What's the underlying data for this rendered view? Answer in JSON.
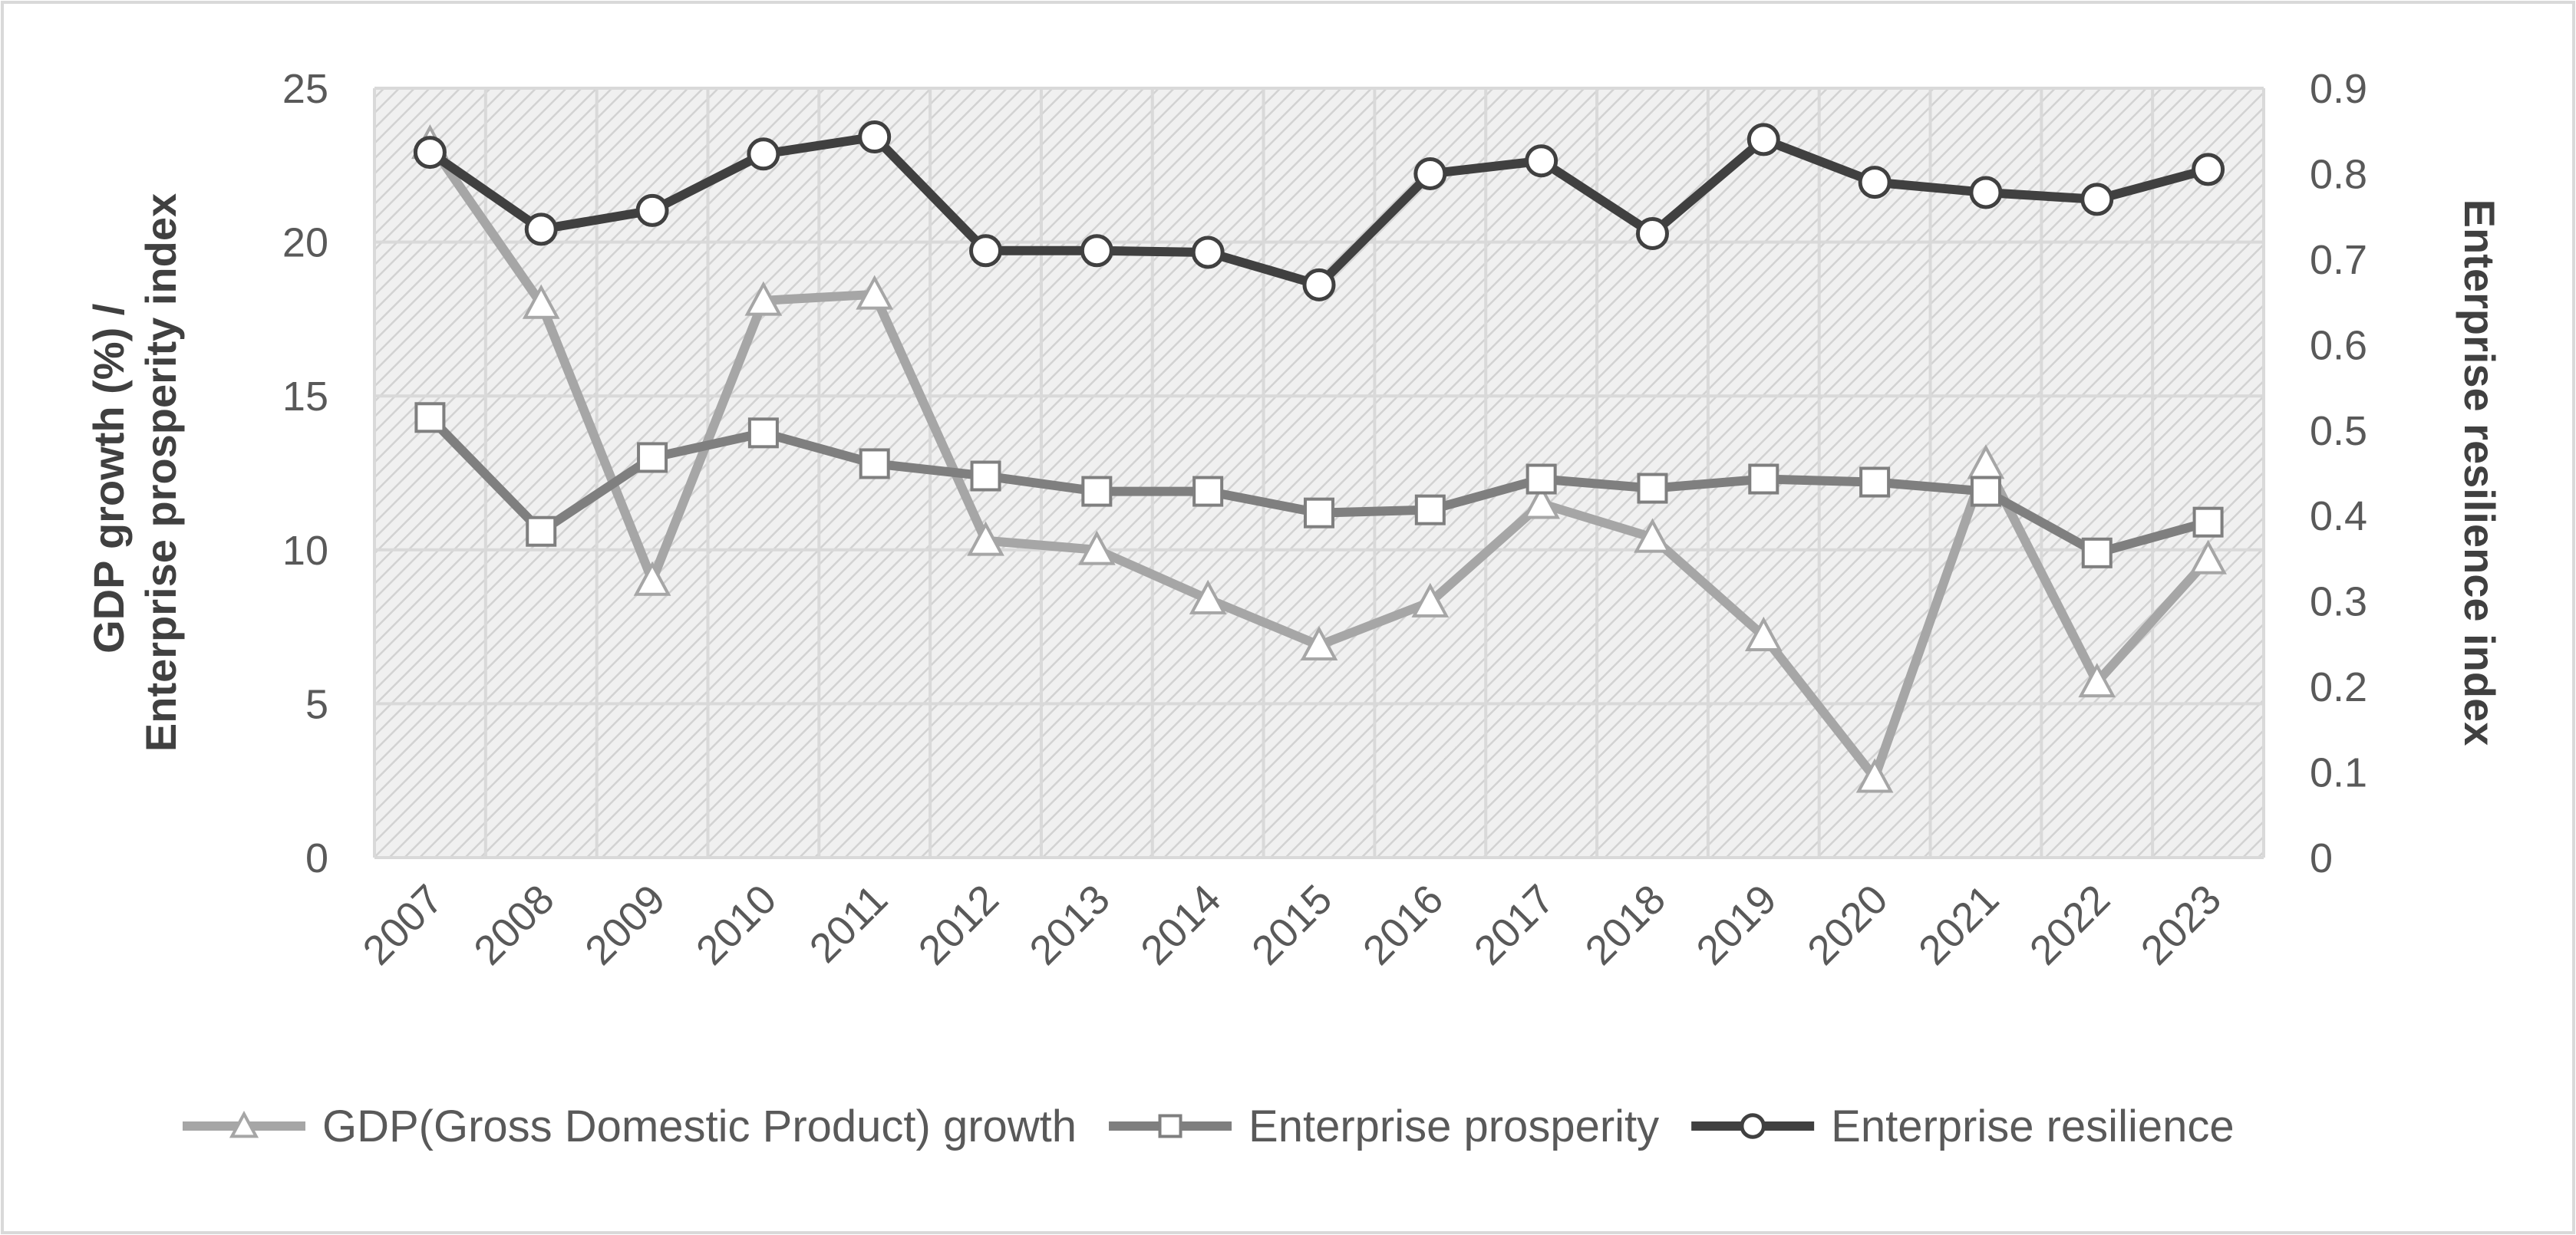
{
  "chart_data": {
    "type": "line",
    "title": "",
    "xlabel": "",
    "ylabel": "GDP growth (%) / Enterprise prosperity index",
    "ylabel_lines": [
      "GDP growth (%) /",
      "Enterprise prosperity index"
    ],
    "y2label": "Enterprise resilience index",
    "categories": [
      "2007",
      "2008",
      "2009",
      "2010",
      "2011",
      "2012",
      "2013",
      "2014",
      "2015",
      "2016",
      "2017",
      "2018",
      "2019",
      "2020",
      "2021",
      "2022",
      "2023"
    ],
    "ylim": [
      0,
      25
    ],
    "y_ticks": [
      0,
      5,
      10,
      15,
      20,
      25
    ],
    "y_tick_labels": [
      "0",
      "5",
      "10",
      "15",
      "20",
      "25"
    ],
    "y2lim": [
      0,
      0.9
    ],
    "y2_ticks": [
      0,
      0.1,
      0.2,
      0.3,
      0.4,
      0.5,
      0.6,
      0.7,
      0.8,
      0.9
    ],
    "y2_tick_labels": [
      "0",
      "0.1",
      "0.2",
      "0.3",
      "0.4",
      "0.5",
      "0.6",
      "0.7",
      "0.8",
      "0.9"
    ],
    "grid": true,
    "legend_position": "bottom",
    "series": [
      {
        "name": "GDP(Gross Domestic Product) growth",
        "axis": "left",
        "marker": "triangle",
        "color": "#a6a6a6",
        "values": [
          23.2,
          18.0,
          9.0,
          18.1,
          18.3,
          10.3,
          10.0,
          8.4,
          6.9,
          8.3,
          11.5,
          10.4,
          7.2,
          2.6,
          12.8,
          5.7,
          9.7
        ]
      },
      {
        "name": "Enterprise prosperity",
        "axis": "left",
        "marker": "square",
        "color": "#7f7f7f",
        "values": [
          14.3,
          10.6,
          13.0,
          13.8,
          12.8,
          12.4,
          11.9,
          11.9,
          11.2,
          11.3,
          12.3,
          12.0,
          12.3,
          12.2,
          11.9,
          9.9,
          10.9
        ]
      },
      {
        "name": "Enterprise resilience",
        "axis": "right",
        "marker": "circle",
        "color": "#404040",
        "values": [
          0.825,
          0.735,
          0.757,
          0.823,
          0.843,
          0.71,
          0.71,
          0.708,
          0.67,
          0.8,
          0.815,
          0.73,
          0.84,
          0.79,
          0.778,
          0.77,
          0.805
        ]
      }
    ]
  }
}
